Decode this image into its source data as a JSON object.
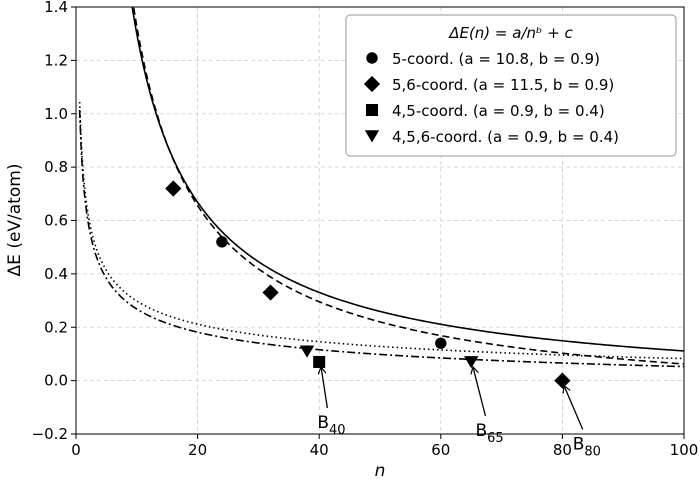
{
  "chart_data": {
    "type": "line",
    "xlabel": "n",
    "ylabel": "ΔE (eV/atom)",
    "xlim": [
      0,
      100
    ],
    "ylim": [
      -0.2,
      1.4
    ],
    "xticks": [
      "0",
      "20",
      "40",
      "60",
      "80",
      "100"
    ],
    "yticks": [
      "−0.2",
      "0.0",
      "0.2",
      "0.4",
      "0.6",
      "0.8",
      "1.0",
      "1.2",
      "1.4"
    ],
    "grid": true,
    "legend_title": "ΔE(n) = a/nᵇ + c",
    "legend_placement": "top-right",
    "series": [
      {
        "name": "5-coord. (a = 10.8, b = 0.9)",
        "marker": "circle",
        "line_style": "solid",
        "a": 10.8,
        "b": 0.9,
        "c": -0.06,
        "points": [
          [
            24,
            0.52
          ],
          [
            60,
            0.14
          ]
        ]
      },
      {
        "name": "5,6-coord. (a = 11.5, b = 0.9)",
        "marker": "diamond",
        "line_style": "dashed",
        "a": 11.5,
        "b": 0.9,
        "c": -0.12,
        "points": [
          [
            16,
            0.72
          ],
          [
            32,
            0.33
          ],
          [
            80,
            0.0
          ]
        ]
      },
      {
        "name": "4,5-coord. (a = 0.9, b = 0.4)",
        "marker": "square",
        "line_style": "dashdot",
        "a": 0.9,
        "b": 0.4,
        "c": -0.09,
        "points": [
          [
            40,
            0.07
          ]
        ]
      },
      {
        "name": "4,5,6-coord. (a = 0.9, b = 0.4)",
        "marker": "triangle-down",
        "line_style": "dotted",
        "a": 0.9,
        "b": 0.4,
        "c": -0.06,
        "points": [
          [
            38,
            0.11
          ],
          [
            65,
            0.07
          ]
        ]
      }
    ],
    "annotations": [
      {
        "base": "B",
        "sub": "40",
        "point": [
          40,
          0.07
        ],
        "text_at": [
          42,
          -0.17
        ]
      },
      {
        "base": "B",
        "sub": "65",
        "point": [
          65,
          0.07
        ],
        "text_at": [
          68,
          -0.2
        ]
      },
      {
        "base": "B",
        "sub": "80",
        "point": [
          80,
          0.0
        ],
        "text_at": [
          84,
          -0.25
        ]
      }
    ]
  }
}
